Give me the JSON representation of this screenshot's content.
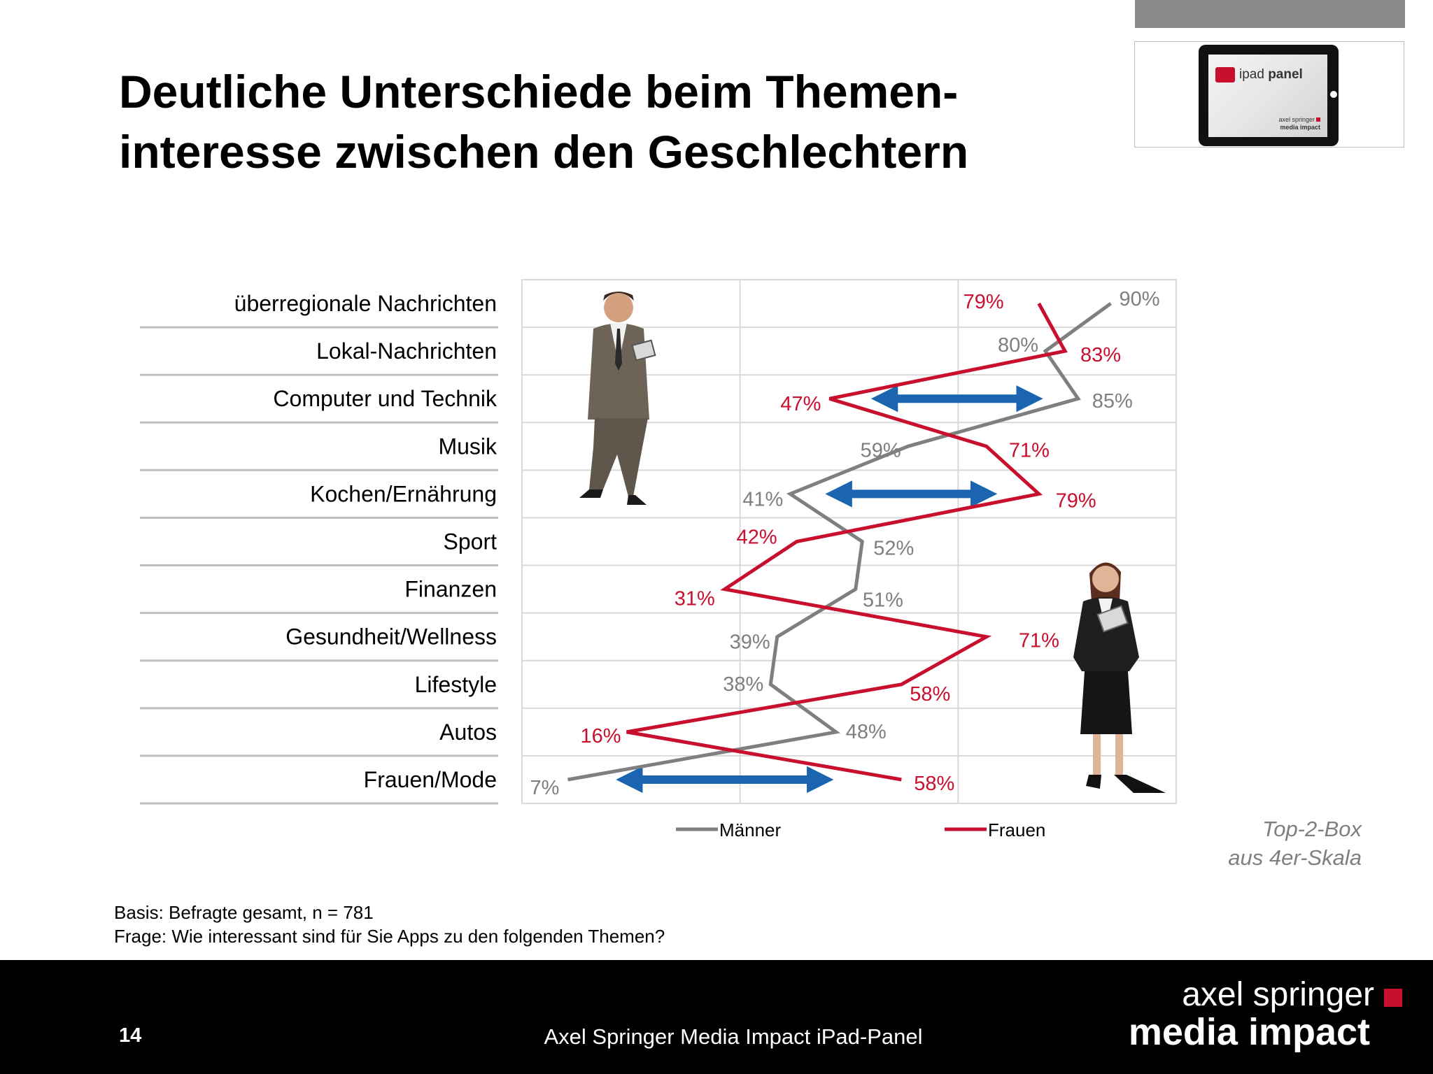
{
  "header": {
    "title_line1": "Deutliche Unterschiede beim Themen-",
    "title_line2": "interesse zwischen den Geschlechtern"
  },
  "logo": {
    "app_prefix": "ipad",
    "app_name": "panel",
    "brand_line1": "axel springer",
    "brand_line2": "media impact"
  },
  "chart_data": {
    "type": "line",
    "orientation": "horizontal",
    "categories": [
      "überregionale Nachrichten",
      "Lokal-Nachrichten",
      "Computer und Technik",
      "Musik",
      "Kochen/Ernährung",
      "Sport",
      "Finanzen",
      "Gesundheit/Wellness",
      "Lifestyle",
      "Autos",
      "Frauen/Mode"
    ],
    "series": [
      {
        "name": "Männer",
        "color": "#7f7f7f",
        "values": [
          90,
          80,
          85,
          59,
          41,
          52,
          51,
          39,
          38,
          48,
          7
        ]
      },
      {
        "name": "Frauen",
        "color": "#c8102e",
        "values": [
          79,
          83,
          47,
          71,
          79,
          42,
          31,
          71,
          58,
          16,
          58
        ]
      }
    ],
    "value_labels": {
      "Männer": [
        "90%",
        "80%",
        "85%",
        "59%",
        "41%",
        "52%",
        "51%",
        "39%",
        "38%",
        "48%",
        "7%"
      ],
      "Frauen": [
        "79%",
        "83%",
        "47%",
        "71%",
        "79%",
        "42%",
        "31%",
        "71%",
        "58%",
        "16%",
        "58%"
      ]
    },
    "xlim": [
      0,
      100
    ],
    "grid": true,
    "legend": "bottom",
    "arrows": [
      {
        "category": "Computer und Technik",
        "from": 55,
        "to": 78
      },
      {
        "category": "Kochen/Ernährung",
        "from": 48,
        "to": 71
      },
      {
        "category": "Frauen/Mode",
        "from": 16,
        "to": 46
      }
    ],
    "arrow_color": "#1a64b0",
    "note_line1": "Top-2-Box",
    "note_line2": "aus 4er-Skala"
  },
  "notes": {
    "basis": "Basis: Befragte gesamt, n = 781",
    "frage": "Frage: Wie interessant sind für Sie Apps zu den folgenden Themen?"
  },
  "footer": {
    "page": "14",
    "text": "Axel Springer Media Impact iPad-Panel",
    "brand_line1": "axel springer",
    "brand_line2": "media impact"
  }
}
